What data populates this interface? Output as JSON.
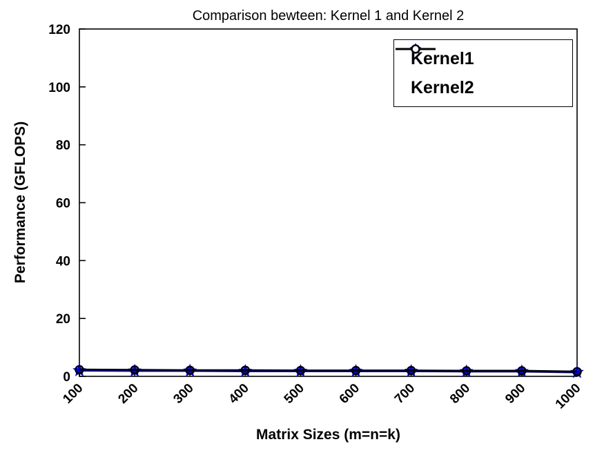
{
  "figure": {
    "background": "#ffffff",
    "axes_color": "#000000"
  },
  "chart_data": {
    "type": "line",
    "title": "Comparison bewteen: Kernel 1 and Kernel 2",
    "xlabel": "Matrix Sizes (m=n=k)",
    "ylabel": "Performance (GFLOPS)",
    "categories": [
      100,
      200,
      300,
      400,
      500,
      600,
      700,
      800,
      900,
      1000
    ],
    "ylim": [
      0,
      120
    ],
    "ytick_step": 20,
    "yticks": [
      0,
      20,
      40,
      60,
      80,
      100,
      120
    ],
    "grid": false,
    "legend_position": "top-right",
    "series": [
      {
        "name": "Kernel1",
        "color": "#0000EE",
        "marker": "star",
        "values": [
          2.0,
          1.9,
          1.9,
          1.8,
          1.8,
          1.8,
          1.8,
          1.7,
          1.7,
          1.4
        ]
      },
      {
        "name": "Kernel2",
        "color": "#000000",
        "marker": "circle",
        "values": [
          2.3,
          2.2,
          2.1,
          2.1,
          2.0,
          2.0,
          2.0,
          1.9,
          1.9,
          1.6
        ]
      }
    ]
  }
}
